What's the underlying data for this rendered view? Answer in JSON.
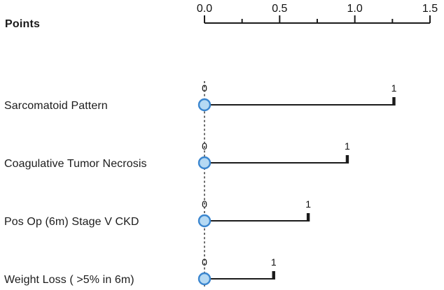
{
  "chart_data": {
    "type": "line",
    "variant": "nomogram",
    "title": "",
    "points_axis": {
      "label": "Points",
      "range": [
        0.0,
        1.5
      ],
      "major_ticks": [
        0.0,
        0.5,
        1.0,
        1.5
      ],
      "minor_ticks": [
        0.25,
        0.75,
        1.25
      ],
      "tick_labels": [
        "0.0",
        "0.5",
        "1.0",
        "1.5"
      ]
    },
    "variables": [
      {
        "label": "Sarcomatoid Pattern",
        "levels": [
          "0",
          "1"
        ],
        "points_level0": 0.0,
        "points_level1": 1.26
      },
      {
        "label": "Coagulative Tumor Necrosis",
        "levels": [
          "0",
          "1"
        ],
        "points_level0": 0.0,
        "points_level1": 0.95
      },
      {
        "label": "Pos Op (6m) Stage V CKD",
        "levels": [
          "0",
          "1"
        ],
        "points_level0": 0.0,
        "points_level1": 0.69
      },
      {
        "label": "Weight Loss ( >5% in 6m)",
        "levels": [
          "0",
          "1"
        ],
        "points_level0": 0.0,
        "points_level1": 0.46
      }
    ],
    "colors": {
      "marker_fill": "#b5d9f3",
      "marker_stroke": "#3b86cf",
      "line": "#1b1b1b",
      "dashed_guide": "#2e2e2e",
      "text": "#111111"
    },
    "legend": null,
    "grid": false
  }
}
